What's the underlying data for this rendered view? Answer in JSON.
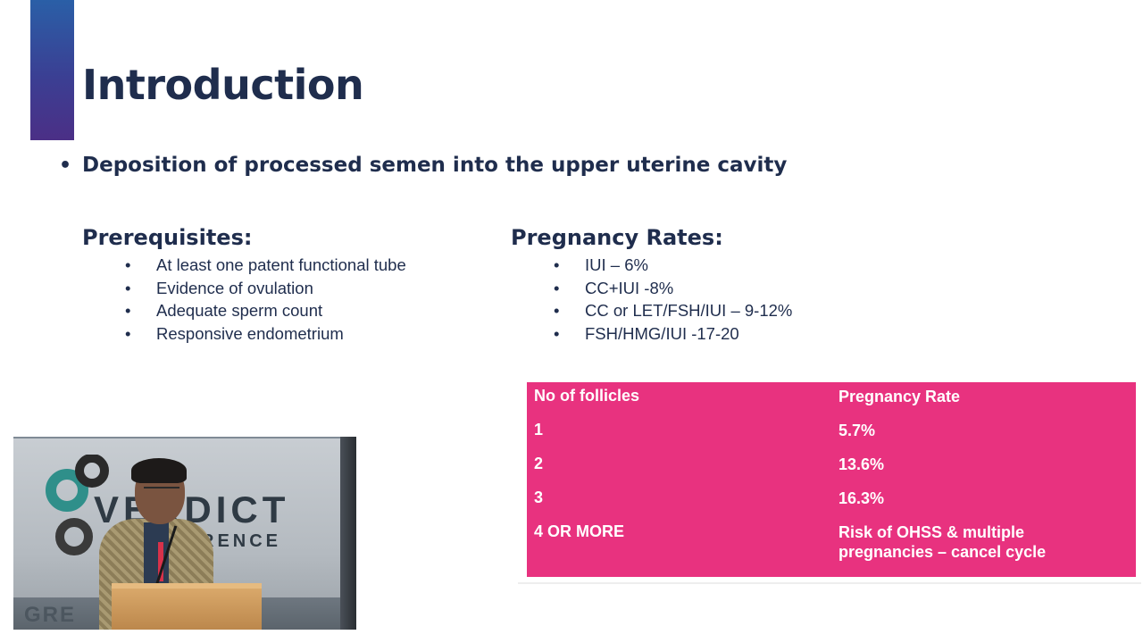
{
  "slide": {
    "title": "Introduction",
    "main_bullet": "Deposition of processed semen into the upper uterine cavity",
    "bullet_char": "•",
    "prerequisites": {
      "heading": "Prerequisites:",
      "items": [
        "At least one patent functional tube",
        "Evidence of ovulation",
        "Adequate sperm count",
        "Responsive endometrium"
      ]
    },
    "pregnancy_rates": {
      "heading": "Pregnancy Rates:",
      "items": [
        "IUI – 6%",
        "CC+IUI -8%",
        "CC or LET/FSH/IUI – 9-12%",
        "FSH/HMG/IUI -17-20"
      ]
    },
    "table": {
      "headers": [
        "No of follicles",
        "Pregnancy Rate"
      ],
      "rows": [
        [
          "1",
          "5.7%"
        ],
        [
          "2",
          "13.6%"
        ],
        [
          "3",
          "16.3%"
        ],
        [
          "4 OR MORE",
          "Risk of OHSS & multiple pregnancies – cancel cycle"
        ]
      ]
    }
  },
  "video_inset": {
    "banner_word": "VERDICT",
    "banner_sub": "CONFERENCE",
    "banner_bottom": "GRE"
  },
  "colors": {
    "title": "#1f2d4d",
    "accent_bar": "#3b3f93",
    "table_background": "#e8327f",
    "table_text": "#ffffff"
  }
}
